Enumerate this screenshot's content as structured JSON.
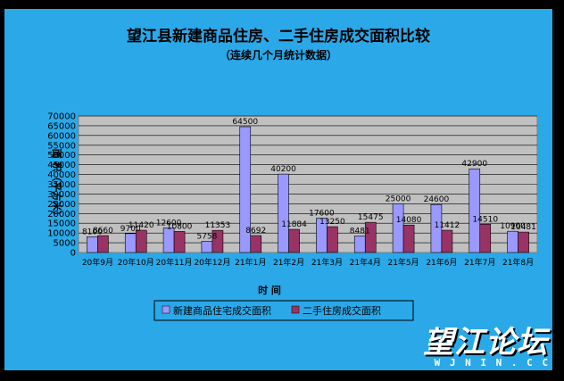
{
  "chart_data": {
    "type": "bar",
    "title": "望江县新建商品住房、二手住房成交面积比较",
    "subtitle": "（连续几个月统计数据）",
    "ylabel": "面 积（平方米）",
    "xlabel": "时 间",
    "ylim": [
      0,
      70000
    ],
    "yticks": [
      0,
      5000,
      10000,
      15000,
      20000,
      25000,
      30000,
      35000,
      40000,
      45000,
      50000,
      55000,
      60000,
      65000,
      70000
    ],
    "categories": [
      "20年9月",
      "20年10月",
      "20年11月",
      "20年12月",
      "21年1月",
      "21年2月",
      "21年3月",
      "21年4月",
      "21年5月",
      "21年6月",
      "21年7月",
      "21年8月"
    ],
    "series": [
      {
        "name": "新建商品住宅成交面积",
        "color": "#9999ff",
        "values": [
          8100,
          9700,
          12600,
          5758,
          64500,
          40200,
          17600,
          8481,
          25000,
          24600,
          42900,
          10900
        ],
        "labels": [
          "8100",
          "9700",
          "12600",
          "5758",
          "64500",
          "40200",
          "17600",
          "8481",
          "25000",
          "24600",
          "42900",
          "10900"
        ]
      },
      {
        "name": "二手住房成交面积",
        "color": "#993366",
        "values": [
          8660,
          11420,
          10800,
          11353,
          8692,
          11884,
          13250,
          15475,
          14080,
          11412,
          14510,
          10481
        ],
        "labels": [
          "8660",
          "11420",
          "10800",
          "11353",
          "8692",
          "11884",
          "13250",
          "15475",
          "14080",
          "11412",
          "14510",
          "10481"
        ]
      }
    ],
    "legend": "bottom",
    "grid": true
  },
  "watermark": {
    "main": "望江论坛",
    "sub": "W J N I N . C C"
  }
}
